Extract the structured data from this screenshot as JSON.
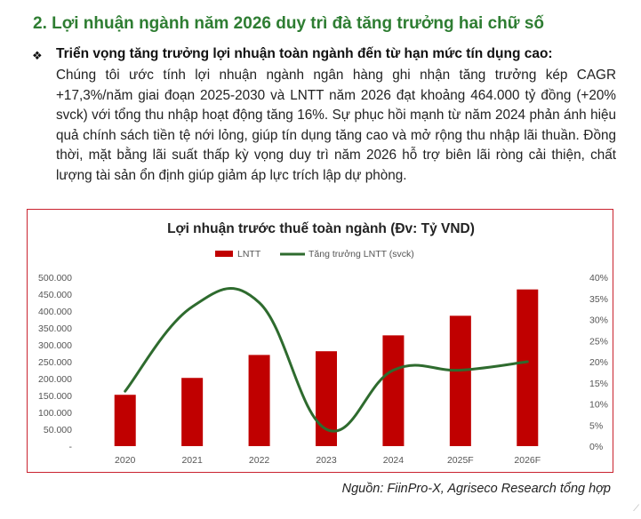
{
  "heading": "2. Lợi nhuận ngành năm 2026 duy trì đà tăng trưởng hai chữ số",
  "bullet_title": "Triển vọng tăng trưởng lợi nhuận toàn ngành đến từ hạn mức tín dụng cao:",
  "paragraph": "Chúng tôi ước tính lợi nhuận ngành ngân hàng ghi nhận tăng trưởng kép CAGR +17,3%/năm giai đoạn 2025-2030 và LNTT năm 2026 đạt khoảng 464.000 tỷ đồng (+20% svck) với tổng thu nhập hoạt động tăng 16%. Sự phục hồi mạnh từ năm 2024 phản ánh hiệu quả chính sách tiền tệ nới lỏng, giúp tín dụng tăng cao và mở rộng thu nhập lãi thuần. Đồng thời, mặt bằng lãi suất thấp kỳ vọng duy trì năm 2026 hỗ trợ biên lãi ròng cải thiện, chất lượng tài sản ổn định giúp giảm áp lực trích lập dự phòng.",
  "source": "Nguồn: FiinPro-X, Agriseco Research tổng hợp",
  "colors": {
    "heading": "#2e7d32",
    "bar": "#c00000",
    "line": "#2e6b2e",
    "frame": "#c9232f"
  },
  "chart_data": {
    "type": "bar",
    "title": "Lợi nhuận trước thuế toàn ngành (Đv: Tỷ VND)",
    "categories": [
      "2020",
      "2021",
      "2022",
      "2023",
      "2024",
      "2025F",
      "2026F"
    ],
    "series": [
      {
        "name": "LNTT",
        "type": "bar",
        "axis": "left",
        "values": [
          152000,
          202000,
          270000,
          281000,
          328000,
          386000,
          464000
        ]
      },
      {
        "name": "Tăng trưởng LNTT (svck)",
        "type": "line",
        "axis": "right",
        "values": [
          13,
          33,
          34,
          4,
          18,
          18,
          20
        ]
      }
    ],
    "y_left": {
      "ticks": [
        "-",
        "50.000",
        "100.000",
        "150.000",
        "200.000",
        "250.000",
        "300.000",
        "350.000",
        "400.000",
        "450.000",
        "500.000"
      ],
      "lim": [
        0,
        500000
      ]
    },
    "y_right": {
      "ticks": [
        "0%",
        "5%",
        "10%",
        "15%",
        "20%",
        "25%",
        "30%",
        "35%",
        "40%"
      ],
      "lim": [
        0,
        40
      ]
    },
    "legend_position": "top-center",
    "grid": false
  }
}
